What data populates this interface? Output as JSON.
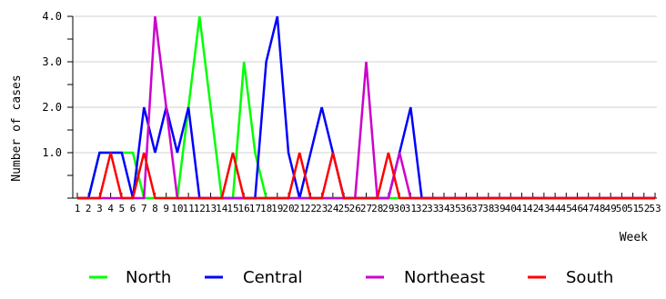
{
  "chart_data": {
    "type": "line",
    "title": "",
    "xlabel": "Week",
    "ylabel": "Number of cases",
    "x": [
      1,
      2,
      3,
      4,
      5,
      6,
      7,
      8,
      9,
      10,
      11,
      12,
      13,
      14,
      15,
      16,
      17,
      18,
      19,
      20,
      21,
      22,
      23,
      24,
      25,
      26,
      27,
      28,
      29,
      30,
      31,
      32,
      33,
      34,
      35,
      36,
      37,
      38,
      39,
      40,
      41,
      42,
      43,
      44,
      45,
      46,
      47,
      48,
      49,
      50,
      51,
      52,
      53
    ],
    "xlim": [
      1,
      53
    ],
    "ylim": [
      0,
      4
    ],
    "yticks": [
      {
        "value": 1,
        "label": "1.0"
      },
      {
        "value": 2,
        "label": "2.0"
      },
      {
        "value": 3,
        "label": "3.0"
      },
      {
        "value": 4,
        "label": "4.0"
      }
    ],
    "grid": true,
    "legend": "bottom",
    "series": [
      {
        "name": "North",
        "color": "#00ff00",
        "values": [
          0,
          0,
          1,
          1,
          1,
          1,
          0,
          0,
          0,
          0,
          2,
          4,
          2,
          0,
          0,
          3,
          1,
          0,
          0,
          0,
          0,
          0,
          0,
          0,
          0,
          0,
          0,
          0,
          0,
          0,
          0,
          0,
          0,
          0,
          0,
          0,
          0,
          0,
          0,
          0,
          0,
          0,
          0,
          0,
          0,
          0,
          0,
          0,
          0,
          0,
          0,
          0,
          0
        ]
      },
      {
        "name": "Central",
        "color": "#0000ff",
        "values": [
          0,
          0,
          1,
          1,
          1,
          0,
          2,
          1,
          2,
          1,
          2,
          0,
          0,
          0,
          0,
          0,
          0,
          3,
          4,
          1,
          0,
          1,
          2,
          1,
          0,
          0,
          0,
          0,
          0,
          1,
          2,
          0,
          0,
          0,
          0,
          0,
          0,
          0,
          0,
          0,
          0,
          0,
          0,
          0,
          0,
          0,
          0,
          0,
          0,
          0,
          0,
          0,
          0
        ]
      },
      {
        "name": "Northeast",
        "color": "#cc00cc",
        "values": [
          0,
          0,
          0,
          0,
          0,
          0,
          0,
          4,
          2,
          0,
          0,
          0,
          0,
          0,
          0,
          0,
          0,
          0,
          0,
          0,
          0,
          0,
          0,
          0,
          0,
          0,
          3,
          0,
          0,
          1,
          0,
          0,
          0,
          0,
          0,
          0,
          0,
          0,
          0,
          0,
          0,
          0,
          0,
          0,
          0,
          0,
          0,
          0,
          0,
          0,
          0,
          0,
          0
        ]
      },
      {
        "name": "South",
        "color": "#ff0000",
        "values": [
          0,
          0,
          0,
          1,
          0,
          0,
          1,
          0,
          0,
          0,
          0,
          0,
          0,
          0,
          1,
          0,
          0,
          0,
          0,
          0,
          1,
          0,
          0,
          1,
          0,
          0,
          0,
          0,
          1,
          0,
          0,
          0,
          0,
          0,
          0,
          0,
          0,
          0,
          0,
          0,
          0,
          0,
          0,
          0,
          0,
          0,
          0,
          0,
          0,
          0,
          0,
          0,
          0
        ]
      }
    ]
  }
}
